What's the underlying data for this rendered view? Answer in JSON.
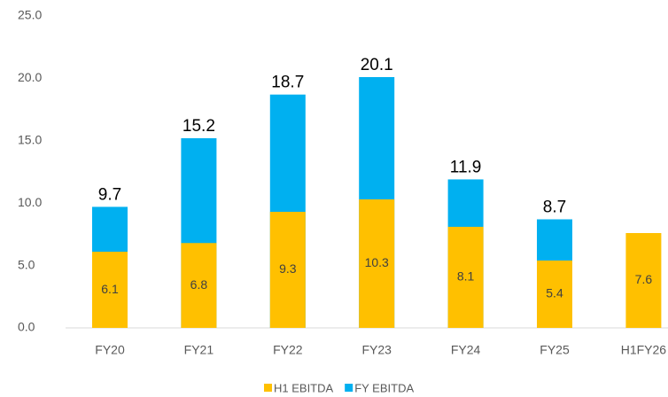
{
  "chart_data": {
    "type": "bar",
    "overlap": true,
    "categories": [
      "FY20",
      "FY21",
      "FY22",
      "FY23",
      "FY24",
      "FY25",
      "H1FY26"
    ],
    "series": [
      {
        "name": "FY EBITDA",
        "color": "#00b0f0",
        "values": [
          9.7,
          15.2,
          18.7,
          20.1,
          11.9,
          8.7,
          null
        ],
        "label_position": "top"
      },
      {
        "name": "H1 EBITDA",
        "color": "#ffc000",
        "values": [
          6.1,
          6.8,
          9.3,
          10.3,
          8.1,
          5.4,
          7.6
        ],
        "label_position": "center"
      }
    ],
    "legend_order": [
      1,
      0
    ],
    "ylim": [
      0,
      25
    ],
    "yticks": [
      {
        "value": 0,
        "label": "0.0"
      },
      {
        "value": 5,
        "label": "5.0"
      },
      {
        "value": 10,
        "label": "10.0"
      },
      {
        "value": 15,
        "label": "15.0"
      },
      {
        "value": 20,
        "label": "20.0"
      },
      {
        "value": 25,
        "label": "25.0"
      }
    ],
    "grid": false
  }
}
